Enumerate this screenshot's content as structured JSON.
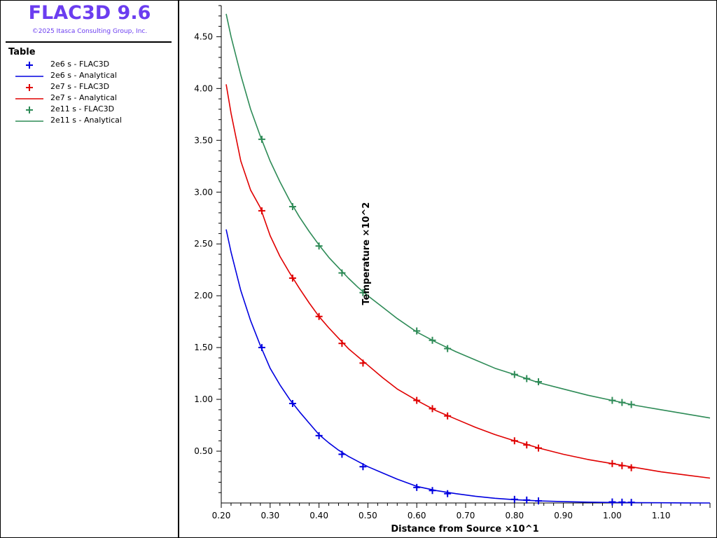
{
  "app": {
    "title": "FLAC3D 9.6",
    "copyright": "©2025 Itasca Consulting Group, Inc."
  },
  "legend": {
    "title": "Table",
    "items": [
      {
        "label": "2e6 s - FLAC3D",
        "kind": "marker",
        "color": "#0000e0"
      },
      {
        "label": "2e6 s - Analytical",
        "kind": "line",
        "color": "#0000e0"
      },
      {
        "label": "2e7 s - FLAC3D",
        "kind": "marker",
        "color": "#e00000"
      },
      {
        "label": "2e7 s - Analytical",
        "kind": "line",
        "color": "#e00000"
      },
      {
        "label": "2e11 s - FLAC3D",
        "kind": "marker",
        "color": "#2e8b57"
      },
      {
        "label": "2e11 s - Analytical",
        "kind": "line",
        "color": "#2e8b57"
      }
    ]
  },
  "chart_data": {
    "type": "line",
    "xlabel": "Distance from Source ×10^1",
    "ylabel": "Temperature ×10^2",
    "xlim": [
      0.2,
      1.2
    ],
    "ylim": [
      0.0,
      4.8
    ],
    "x_ticks": [
      "0.20",
      "0.30",
      "0.40",
      "0.50",
      "0.60",
      "0.70",
      "0.80",
      "0.90",
      "1.00",
      "1.10"
    ],
    "y_ticks": [
      "0.50",
      "1.00",
      "1.50",
      "2.00",
      "2.50",
      "3.00",
      "3.50",
      "4.00",
      "4.50"
    ],
    "grid": false,
    "series": [
      {
        "name": "2e6 s - Analytical",
        "kind": "line",
        "color": "#0000e0",
        "x": [
          0.21,
          0.22,
          0.24,
          0.26,
          0.28,
          0.3,
          0.32,
          0.34,
          0.36,
          0.38,
          0.4,
          0.42,
          0.44,
          0.46,
          0.48,
          0.5,
          0.53,
          0.56,
          0.6,
          0.64,
          0.68,
          0.72,
          0.76,
          0.8,
          0.85,
          0.9,
          0.95,
          1.0,
          1.05,
          1.1,
          1.15,
          1.2
        ],
        "y": [
          2.64,
          2.42,
          2.05,
          1.76,
          1.52,
          1.3,
          1.14,
          1.0,
          0.88,
          0.77,
          0.66,
          0.58,
          0.51,
          0.45,
          0.4,
          0.35,
          0.29,
          0.23,
          0.16,
          0.12,
          0.09,
          0.065,
          0.045,
          0.032,
          0.02,
          0.013,
          0.008,
          0.005,
          0.003,
          0.002,
          0.001,
          0.0
        ]
      },
      {
        "name": "2e6 s - FLAC3D",
        "kind": "marker",
        "color": "#0000e0",
        "x": [
          0.283,
          0.346,
          0.4,
          0.447,
          0.49,
          0.6,
          0.632,
          0.663,
          0.8,
          0.825,
          0.849,
          1.0,
          1.02,
          1.039
        ],
        "y": [
          1.5,
          0.96,
          0.65,
          0.47,
          0.35,
          0.15,
          0.12,
          0.09,
          0.035,
          0.028,
          0.02,
          0.01,
          0.008,
          0.006
        ]
      },
      {
        "name": "2e7 s - Analytical",
        "kind": "line",
        "color": "#e00000",
        "x": [
          0.21,
          0.22,
          0.24,
          0.26,
          0.28,
          0.3,
          0.32,
          0.34,
          0.36,
          0.38,
          0.4,
          0.42,
          0.44,
          0.46,
          0.48,
          0.5,
          0.53,
          0.56,
          0.6,
          0.64,
          0.68,
          0.72,
          0.76,
          0.8,
          0.85,
          0.9,
          0.95,
          1.0,
          1.05,
          1.1,
          1.15,
          1.2
        ],
        "y": [
          4.04,
          3.76,
          3.3,
          3.02,
          2.85,
          2.58,
          2.38,
          2.22,
          2.07,
          1.93,
          1.8,
          1.69,
          1.59,
          1.49,
          1.41,
          1.33,
          1.21,
          1.1,
          0.99,
          0.89,
          0.81,
          0.73,
          0.66,
          0.6,
          0.53,
          0.47,
          0.42,
          0.38,
          0.34,
          0.3,
          0.27,
          0.24
        ]
      },
      {
        "name": "2e7 s - FLAC3D",
        "kind": "marker",
        "color": "#e00000",
        "x": [
          0.283,
          0.346,
          0.4,
          0.447,
          0.49,
          0.6,
          0.632,
          0.663,
          0.8,
          0.825,
          0.849,
          1.0,
          1.02,
          1.039
        ],
        "y": [
          2.82,
          2.17,
          1.8,
          1.54,
          1.35,
          0.99,
          0.91,
          0.84,
          0.6,
          0.56,
          0.53,
          0.38,
          0.36,
          0.34
        ]
      },
      {
        "name": "2e11 s - Analytical",
        "kind": "line",
        "color": "#2e8b57",
        "x": [
          0.21,
          0.22,
          0.24,
          0.26,
          0.28,
          0.3,
          0.32,
          0.34,
          0.36,
          0.38,
          0.4,
          0.42,
          0.44,
          0.46,
          0.48,
          0.5,
          0.53,
          0.56,
          0.6,
          0.64,
          0.68,
          0.72,
          0.76,
          0.8,
          0.85,
          0.9,
          0.95,
          1.0,
          1.05,
          1.1,
          1.15,
          1.2
        ],
        "y": [
          4.72,
          4.5,
          4.13,
          3.8,
          3.54,
          3.3,
          3.1,
          2.92,
          2.76,
          2.62,
          2.49,
          2.37,
          2.27,
          2.17,
          2.08,
          2.0,
          1.89,
          1.78,
          1.65,
          1.55,
          1.46,
          1.38,
          1.3,
          1.24,
          1.16,
          1.1,
          1.04,
          0.99,
          0.94,
          0.9,
          0.86,
          0.82
        ]
      },
      {
        "name": "2e11 s - FLAC3D",
        "kind": "marker",
        "color": "#2e8b57",
        "x": [
          0.283,
          0.346,
          0.4,
          0.447,
          0.49,
          0.6,
          0.632,
          0.663,
          0.8,
          0.825,
          0.849,
          1.0,
          1.02,
          1.039
        ],
        "y": [
          3.51,
          2.86,
          2.48,
          2.22,
          2.03,
          1.66,
          1.57,
          1.49,
          1.24,
          1.2,
          1.17,
          0.99,
          0.97,
          0.95
        ]
      }
    ]
  }
}
